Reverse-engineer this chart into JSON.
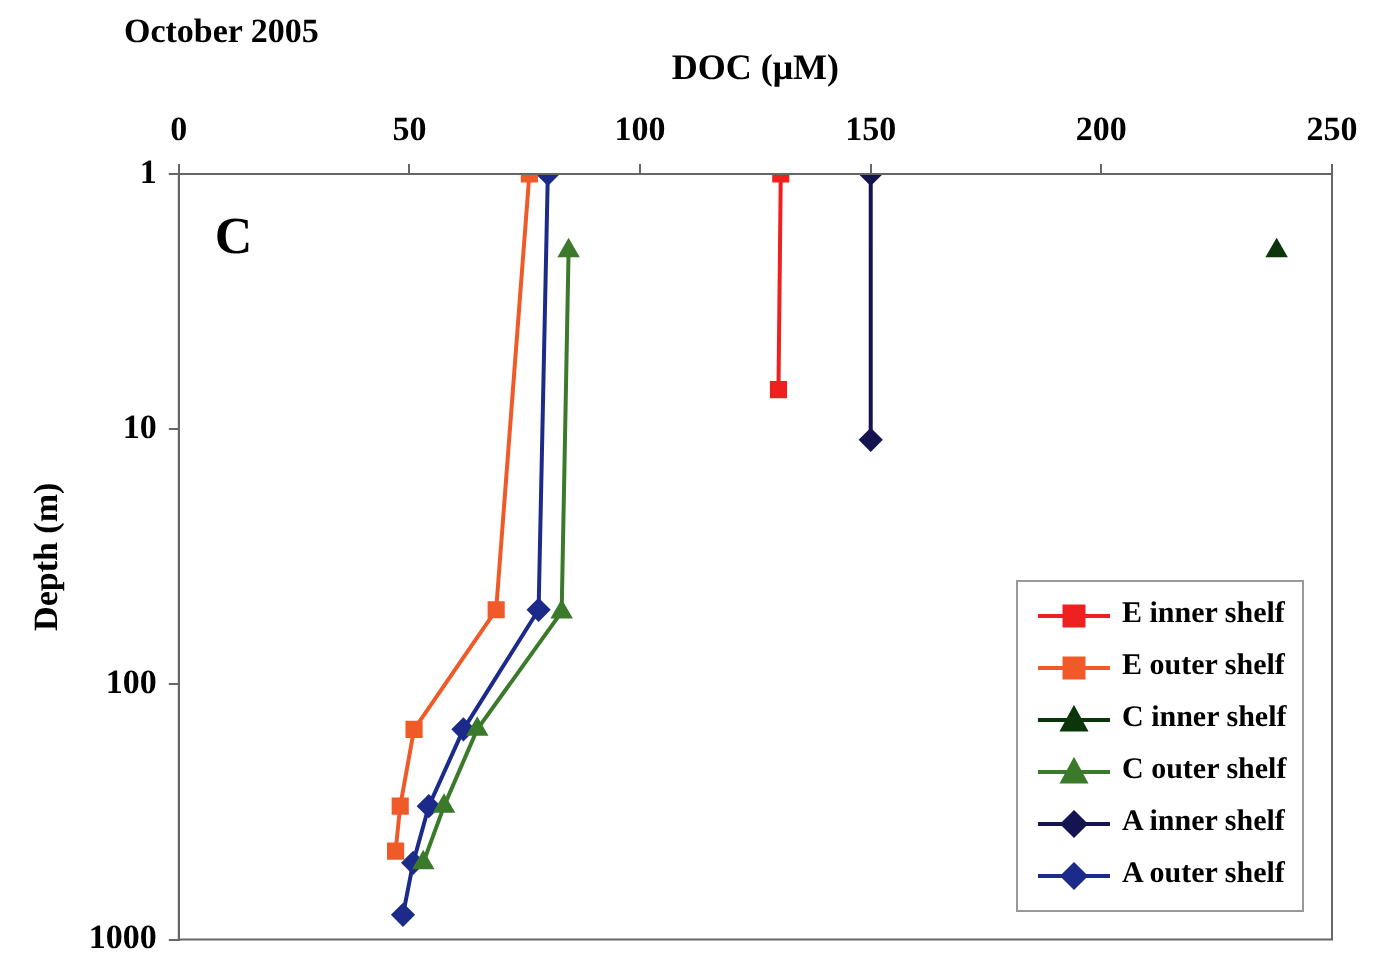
{
  "chart_data": {
    "type": "line",
    "title": "October 2005",
    "xlabel": "DOC (μM)",
    "ylabel": "Depth (m)",
    "annotations": [
      "C"
    ],
    "xlim": [
      0,
      250
    ],
    "xticks": [
      0,
      50,
      100,
      150,
      200,
      250
    ],
    "ylim": [
      1000,
      1
    ],
    "yticks": [
      1,
      10,
      100,
      1000
    ],
    "log": "y",
    "grid": false,
    "legend": "bottom right",
    "series": [
      {
        "name": "E inner shelf",
        "color": "#ee2020",
        "marker": "square",
        "x": [
          130.5,
          130
        ],
        "values": [
          1,
          7
        ]
      },
      {
        "name": "E outer shelf",
        "color": "#f05a28",
        "marker": "square",
        "x": [
          76,
          68.8,
          51,
          48,
          47
        ],
        "values": [
          1,
          51,
          150,
          300,
          450
        ]
      },
      {
        "name": "C inner shelf",
        "color": "#0a360a",
        "marker": "triangle",
        "x": [
          238
        ],
        "values": [
          2
        ]
      },
      {
        "name": "C outer shelf",
        "color": "#3a7a2a",
        "marker": "triangle",
        "x": [
          84.5,
          83,
          64.7,
          57.5,
          53
        ],
        "values": [
          2,
          52,
          150,
          300,
          500
        ]
      },
      {
        "name": "A inner shelf",
        "color": "#141450",
        "marker": "diamond",
        "x": [
          150,
          150
        ],
        "values": [
          1,
          11
        ]
      },
      {
        "name": "A outer shelf",
        "color": "#1c2a8a",
        "marker": "diamond",
        "x": [
          80,
          78,
          61.7,
          54.2,
          50.8,
          48.6
        ],
        "values": [
          1,
          51,
          150,
          300,
          500,
          800
        ]
      }
    ]
  }
}
